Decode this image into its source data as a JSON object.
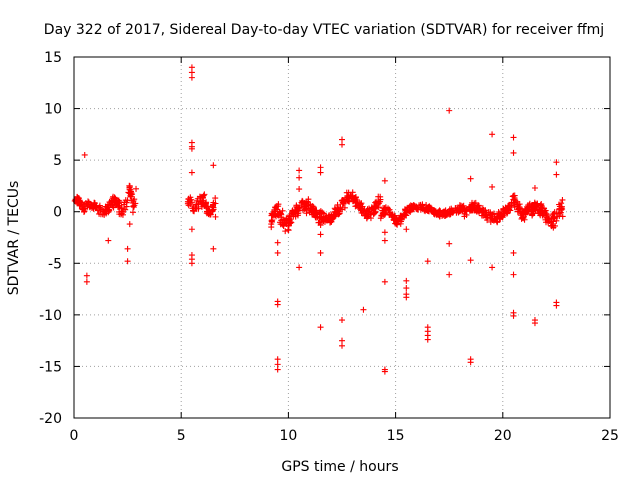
{
  "chart_data": {
    "type": "scatter",
    "title": "Day 322 of 2017, Sidereal Day-to-day VTEC variation (SDTVAR) for receiver ffmj",
    "xlabel": "GPS time / hours",
    "ylabel": "SDTVAR / TECUs",
    "xlim": [
      0,
      25
    ],
    "ylim": [
      -20,
      15
    ],
    "grid": true,
    "xticks": [
      0,
      5,
      10,
      15,
      20,
      25
    ],
    "yticks": [
      -20,
      -15,
      -10,
      -5,
      0,
      5,
      10,
      15
    ],
    "marker": "+",
    "color": "#ff0000",
    "series": [
      {
        "name": "SDTVAR",
        "segments": [
          {
            "x0": 0.0,
            "x1": 0.7,
            "center": 0.7,
            "amp": 0.4,
            "noise": 0.6,
            "n": 45
          },
          {
            "x0": 0.7,
            "x1": 1.7,
            "center": 0.3,
            "amp": 0.3,
            "noise": 0.6,
            "n": 50
          },
          {
            "x0": 1.7,
            "x1": 2.5,
            "center": 0.6,
            "amp": 0.6,
            "noise": 0.9,
            "n": 45
          },
          {
            "x0": 2.5,
            "x1": 2.9,
            "center": 1.4,
            "amp": 0.7,
            "noise": 0.9,
            "n": 25
          },
          {
            "x0": 5.3,
            "x1": 5.8,
            "center": 0.6,
            "amp": 0.5,
            "noise": 0.8,
            "n": 25
          },
          {
            "x0": 5.8,
            "x1": 6.6,
            "center": 0.5,
            "amp": 0.6,
            "noise": 1.0,
            "n": 55
          },
          {
            "x0": 9.2,
            "x1": 10.3,
            "center": -0.6,
            "amp": 0.7,
            "noise": 1.0,
            "n": 80
          },
          {
            "x0": 10.3,
            "x1": 12.5,
            "center": -0.1,
            "amp": 0.6,
            "noise": 0.9,
            "n": 150
          },
          {
            "x0": 12.5,
            "x1": 14.3,
            "center": 0.6,
            "amp": 0.8,
            "noise": 0.9,
            "n": 120
          },
          {
            "x0": 14.3,
            "x1": 15.5,
            "center": -0.4,
            "amp": 0.5,
            "noise": 0.6,
            "n": 80
          },
          {
            "x0": 15.5,
            "x1": 18.2,
            "center": 0.1,
            "amp": 0.3,
            "noise": 0.5,
            "n": 180
          },
          {
            "x0": 18.2,
            "x1": 20.3,
            "center": -0.1,
            "amp": 0.5,
            "noise": 0.7,
            "n": 140
          },
          {
            "x0": 20.3,
            "x1": 21.3,
            "center": 0.4,
            "amp": 0.7,
            "noise": 0.9,
            "n": 70
          },
          {
            "x0": 21.3,
            "x1": 22.8,
            "center": -0.2,
            "amp": 0.7,
            "noise": 1.0,
            "n": 100
          }
        ],
        "outliers": [
          [
            0.5,
            5.5
          ],
          [
            0.6,
            -6.2
          ],
          [
            0.6,
            -6.8
          ],
          [
            1.6,
            -2.8
          ],
          [
            2.5,
            -3.6
          ],
          [
            2.5,
            -4.8
          ],
          [
            2.6,
            -1.2
          ],
          [
            5.5,
            14.0
          ],
          [
            5.5,
            13.5
          ],
          [
            5.5,
            13.0
          ],
          [
            5.5,
            6.7
          ],
          [
            5.5,
            6.3
          ],
          [
            5.5,
            6.1
          ],
          [
            5.5,
            3.8
          ],
          [
            5.5,
            -1.7
          ],
          [
            5.5,
            -4.2
          ],
          [
            5.5,
            -4.6
          ],
          [
            5.5,
            -5.0
          ],
          [
            6.5,
            4.5
          ],
          [
            6.5,
            -3.6
          ],
          [
            6.6,
            -0.5
          ],
          [
            9.2,
            -1.2
          ],
          [
            9.5,
            -3.0
          ],
          [
            9.5,
            -4.0
          ],
          [
            9.5,
            -8.7
          ],
          [
            9.5,
            -9.0
          ],
          [
            9.5,
            -14.3
          ],
          [
            9.5,
            -14.8
          ],
          [
            9.5,
            -15.3
          ],
          [
            10.5,
            4.0
          ],
          [
            10.5,
            3.3
          ],
          [
            10.5,
            2.2
          ],
          [
            10.5,
            -5.4
          ],
          [
            11.5,
            4.3
          ],
          [
            11.5,
            3.8
          ],
          [
            11.5,
            -2.2
          ],
          [
            11.5,
            -4.0
          ],
          [
            11.5,
            -11.2
          ],
          [
            12.5,
            7.0
          ],
          [
            12.5,
            6.5
          ],
          [
            12.5,
            -10.5
          ],
          [
            12.5,
            -12.5
          ],
          [
            12.5,
            -13.0
          ],
          [
            13.5,
            -9.5
          ],
          [
            14.5,
            3.0
          ],
          [
            14.5,
            -2.0
          ],
          [
            14.5,
            -2.8
          ],
          [
            14.5,
            -6.8
          ],
          [
            14.5,
            -15.3
          ],
          [
            14.5,
            -15.5
          ],
          [
            15.5,
            -1.7
          ],
          [
            15.5,
            -6.7
          ],
          [
            15.5,
            -7.4
          ],
          [
            15.5,
            -8.0
          ],
          [
            15.5,
            -8.3
          ],
          [
            16.5,
            -4.8
          ],
          [
            16.5,
            -11.2
          ],
          [
            16.5,
            -11.6
          ],
          [
            16.5,
            -12.0
          ],
          [
            16.5,
            -12.4
          ],
          [
            17.5,
            9.8
          ],
          [
            17.5,
            -3.1
          ],
          [
            17.5,
            -6.1
          ],
          [
            18.5,
            3.2
          ],
          [
            18.5,
            -4.7
          ],
          [
            18.5,
            -14.3
          ],
          [
            18.5,
            -14.6
          ],
          [
            19.5,
            7.5
          ],
          [
            19.5,
            2.4
          ],
          [
            19.5,
            -5.4
          ],
          [
            20.5,
            7.2
          ],
          [
            20.5,
            5.7
          ],
          [
            20.5,
            -4.0
          ],
          [
            20.5,
            -6.1
          ],
          [
            20.5,
            -9.8
          ],
          [
            20.5,
            -10.1
          ],
          [
            21.5,
            2.3
          ],
          [
            21.5,
            -10.5
          ],
          [
            21.5,
            -10.8
          ],
          [
            22.5,
            4.8
          ],
          [
            22.5,
            3.6
          ],
          [
            22.5,
            -8.8
          ],
          [
            22.5,
            -9.1
          ]
        ]
      }
    ]
  }
}
